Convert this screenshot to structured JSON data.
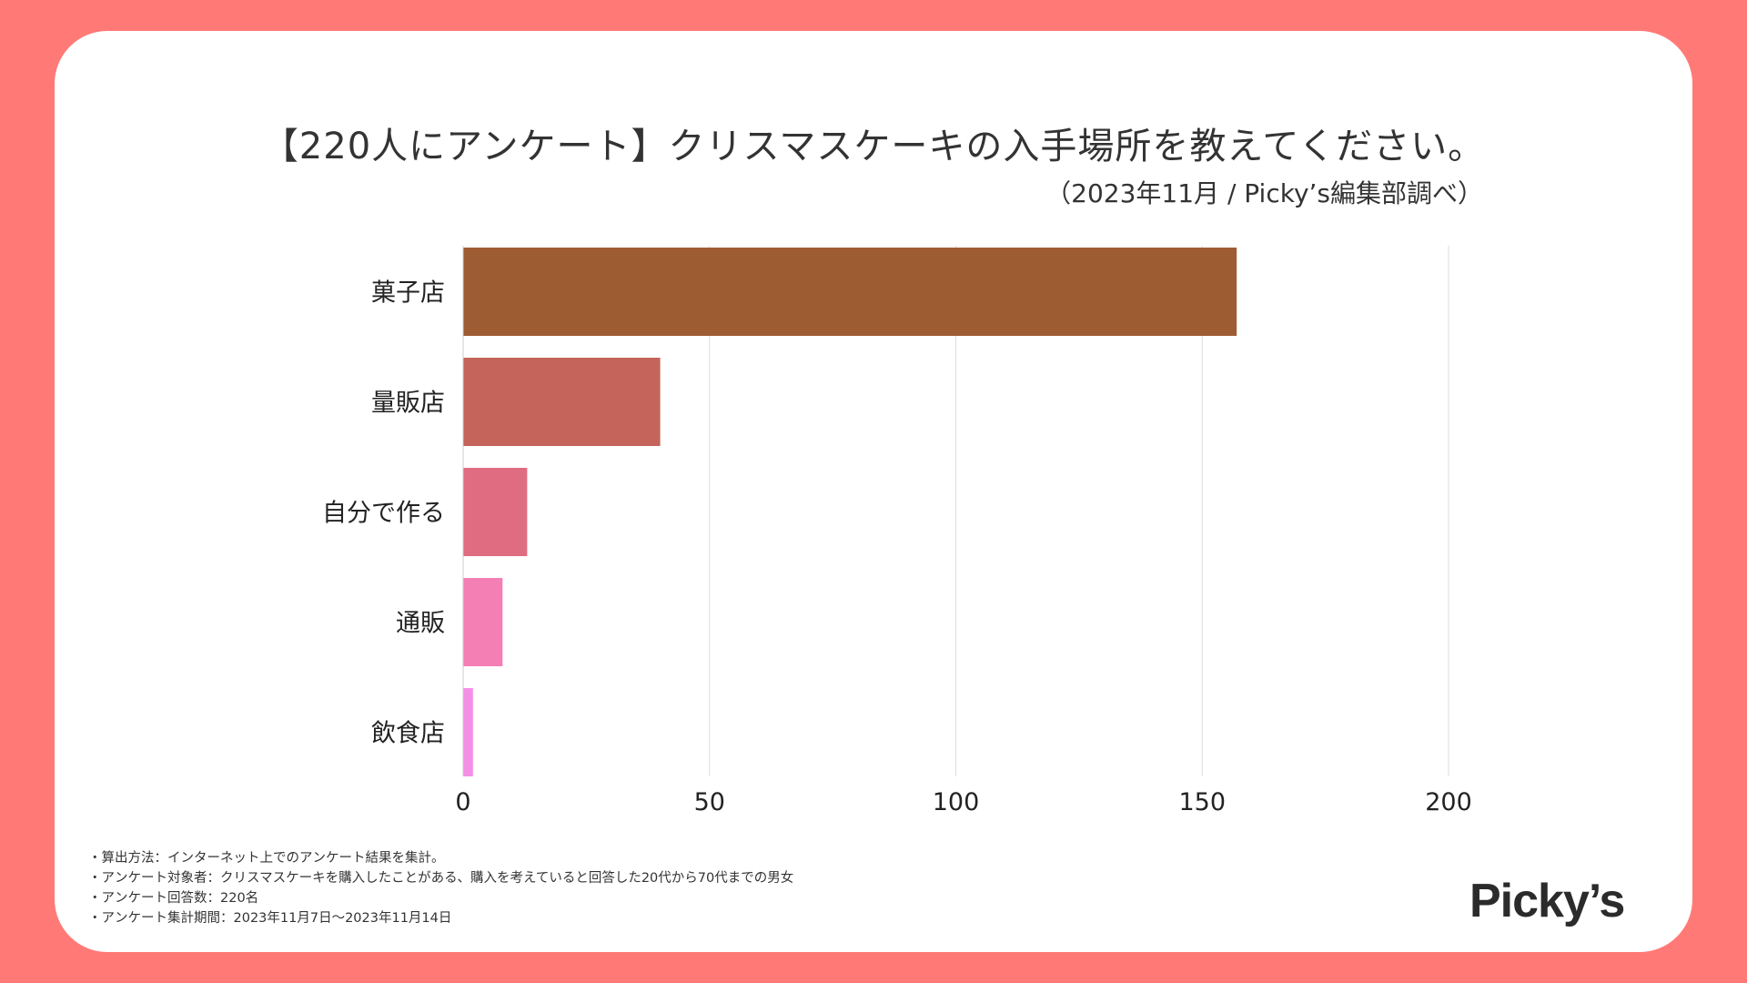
{
  "title": "【220人にアンケート】クリスマスケーキの入手場所を教えてください。",
  "subtitle": "（2023年11月 / Picky’s編集部調べ）",
  "chart_data": {
    "type": "bar",
    "orientation": "horizontal",
    "categories": [
      "菓子店",
      "量販店",
      "自分で作る",
      "通販",
      "飲食店"
    ],
    "values": [
      157,
      40,
      13,
      8,
      2
    ],
    "colors": [
      "#9e5c33",
      "#c4645a",
      "#e06c82",
      "#f47fb5",
      "#f58fe6"
    ],
    "xlim": [
      0,
      200
    ],
    "xticks": [
      0,
      50,
      100,
      150,
      200
    ],
    "grid": true,
    "title": "【220人にアンケート】クリスマスケーキの入手場所を教えてください。",
    "xlabel": "",
    "ylabel": ""
  },
  "notes": [
    "・算出方法：インターネット上でのアンケート結果を集計。",
    "・アンケート対象者：クリスマスケーキを購入したことがある、購入を考えていると回答した20代から70代までの男女",
    "・アンケート回答数：220名",
    "・アンケート集計期間：2023年11月7日〜2023年11月14日"
  ],
  "logo": "Picky’s",
  "colors": {
    "background": "#ff7a76",
    "card": "#ffffff"
  }
}
